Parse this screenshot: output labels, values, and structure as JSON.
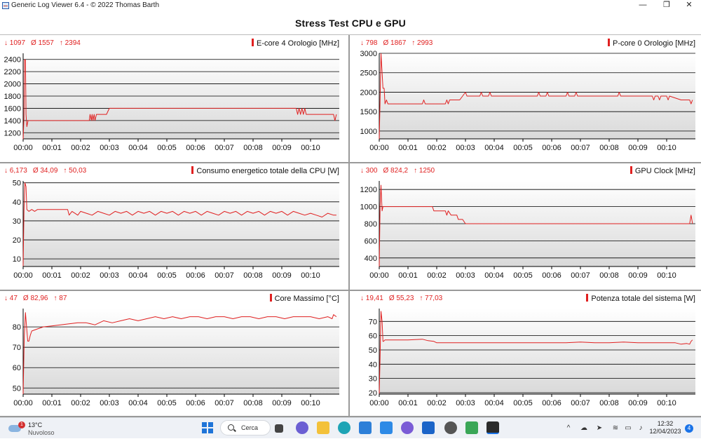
{
  "window": {
    "title": "Generic Log Viewer 6.4 - © 2022 Thomas Barth",
    "min": "—",
    "max": "❐",
    "close": "✕"
  },
  "header": {
    "title": "Stress Test CPU e GPU"
  },
  "colors": {
    "series": "#e02020",
    "grid": "#000000",
    "plot_bg_top": "#ffffff",
    "plot_bg_bottom": "#d9d9d9"
  },
  "x_ticks": [
    "00:00",
    "00:01",
    "00:02",
    "00:03",
    "00:04",
    "00:05",
    "00:06",
    "00:07",
    "00:08",
    "00:09",
    "00:10"
  ],
  "panels": [
    {
      "title": "E-core 4 Orologio [MHz]",
      "stats": {
        "min": "↓ 1097",
        "avg": "Ø 1557",
        "max": "↑ 2394"
      }
    },
    {
      "title": "P-core 0 Orologio [MHz]",
      "stats": {
        "min": "↓ 798",
        "avg": "Ø 1867",
        "max": "↑ 2993"
      }
    },
    {
      "title": "Consumo energetico totale della CPU [W]",
      "stats": {
        "min": "↓ 6,173",
        "avg": "Ø 34,09",
        "max": "↑ 50,03"
      }
    },
    {
      "title": "GPU Clock [MHz]",
      "stats": {
        "min": "↓ 300",
        "avg": "Ø 824,2",
        "max": "↑ 1250"
      }
    },
    {
      "title": "Core Massimo [°C]",
      "stats": {
        "min": "↓ 47",
        "avg": "Ø 82,96",
        "max": "↑ 87"
      }
    },
    {
      "title": "Potenza totale del sistema [W]",
      "stats": {
        "min": "↓ 19,41",
        "avg": "Ø 55,23",
        "max": "↑ 77,03"
      }
    }
  ],
  "chart_data": [
    {
      "type": "line",
      "ylim": [
        1100,
        2500
      ],
      "yticks": [
        1200,
        1400,
        1600,
        1800,
        2000,
        2200,
        2400
      ],
      "grid": true,
      "x_minutes": [
        0,
        0.03,
        0.05,
        0.08,
        0.1,
        0.13,
        0.17,
        0.2,
        0.3,
        0.5,
        1.0,
        1.5,
        2.2,
        2.3,
        2.33,
        2.37,
        2.4,
        2.43,
        2.47,
        2.5,
        2.55,
        2.6,
        2.65,
        2.9,
        3.0,
        5.0,
        7.0,
        9.0,
        9.5,
        9.55,
        9.6,
        9.65,
        9.7,
        9.75,
        9.8,
        9.85,
        9.9,
        10.5,
        10.8,
        10.85,
        10.9
      ],
      "values": [
        1097,
        1450,
        2394,
        2394,
        1500,
        1300,
        1400,
        1400,
        1400,
        1400,
        1400,
        1400,
        1400,
        1400,
        1500,
        1400,
        1500,
        1400,
        1500,
        1400,
        1500,
        1500,
        1500,
        1500,
        1600,
        1600,
        1600,
        1600,
        1600,
        1500,
        1600,
        1500,
        1600,
        1500,
        1600,
        1500,
        1500,
        1500,
        1500,
        1400,
        1500
      ]
    },
    {
      "type": "line",
      "ylim": [
        800,
        3000
      ],
      "yticks": [
        1000,
        1500,
        2000,
        2500,
        3000
      ],
      "grid": true,
      "x_minutes": [
        0,
        0.03,
        0.06,
        0.1,
        0.13,
        0.17,
        0.2,
        0.25,
        0.3,
        0.5,
        1.0,
        1.5,
        1.55,
        1.6,
        2.0,
        2.3,
        2.35,
        2.4,
        2.45,
        2.5,
        2.8,
        3.0,
        3.05,
        3.1,
        3.5,
        3.55,
        3.6,
        3.8,
        3.85,
        3.9,
        5.0,
        5.5,
        5.55,
        5.6,
        5.8,
        5.85,
        5.9,
        6.5,
        6.55,
        6.6,
        6.8,
        6.85,
        6.9,
        8.3,
        8.35,
        8.4,
        9.5,
        9.55,
        9.6,
        9.7,
        9.75,
        9.8,
        10.0,
        10.05,
        10.1,
        10.5,
        10.8,
        10.85,
        10.9
      ],
      "values": [
        798,
        1800,
        2993,
        2500,
        2100,
        2100,
        1700,
        1800,
        1700,
        1700,
        1700,
        1700,
        1800,
        1700,
        1700,
        1700,
        1800,
        1700,
        1800,
        1800,
        1800,
        2000,
        1900,
        1900,
        1900,
        2000,
        1900,
        1900,
        2000,
        1900,
        1900,
        1900,
        2000,
        1900,
        1900,
        2000,
        1900,
        1900,
        2000,
        1900,
        1900,
        2000,
        1900,
        1900,
        2000,
        1900,
        1900,
        1800,
        1900,
        1900,
        1800,
        1900,
        1900,
        1800,
        1900,
        1800,
        1800,
        1700,
        1800
      ]
    },
    {
      "type": "line",
      "ylim": [
        6,
        51
      ],
      "yticks": [
        10,
        20,
        30,
        40,
        50
      ],
      "grid": true,
      "x_minutes": [
        0,
        0.03,
        0.06,
        0.1,
        0.13,
        0.2,
        0.3,
        0.4,
        0.5,
        0.7,
        1.0,
        1.3,
        1.55,
        1.6,
        1.7,
        1.8,
        1.9,
        2.0,
        2.2,
        2.4,
        2.6,
        2.8,
        3.0,
        3.2,
        3.4,
        3.6,
        3.8,
        4.0,
        4.2,
        4.4,
        4.6,
        4.8,
        5.0,
        5.2,
        5.4,
        5.6,
        5.8,
        6.0,
        6.2,
        6.4,
        6.6,
        6.8,
        7.0,
        7.2,
        7.4,
        7.6,
        7.8,
        8.0,
        8.2,
        8.4,
        8.6,
        8.8,
        9.0,
        9.2,
        9.4,
        9.6,
        9.8,
        10.0,
        10.2,
        10.4,
        10.6,
        10.8,
        10.9
      ],
      "values": [
        6.173,
        35,
        50.03,
        48,
        36,
        35,
        36,
        35,
        36,
        36,
        36,
        36,
        36,
        33,
        35,
        34,
        33,
        35,
        34,
        33,
        35,
        34,
        33,
        35,
        34,
        35,
        33,
        35,
        34,
        35,
        33,
        35,
        34,
        35,
        33,
        35,
        34,
        35,
        33,
        35,
        34,
        33,
        35,
        34,
        35,
        33,
        35,
        34,
        35,
        33,
        35,
        34,
        35,
        33,
        35,
        34,
        33,
        34,
        33,
        32,
        34,
        33,
        33
      ]
    },
    {
      "type": "line",
      "ylim": [
        300,
        1300
      ],
      "yticks": [
        400,
        600,
        800,
        1000,
        1200
      ],
      "grid": true,
      "x_minutes": [
        0,
        0.03,
        0.06,
        0.1,
        0.13,
        0.15,
        0.2,
        0.5,
        1.0,
        1.5,
        1.85,
        1.9,
        2.2,
        2.3,
        2.35,
        2.4,
        2.5,
        2.55,
        2.7,
        2.75,
        2.8,
        2.9,
        3.0,
        4.0,
        5.0,
        6.0,
        7.0,
        8.0,
        9.0,
        10.0,
        10.8,
        10.85,
        10.9
      ],
      "values": [
        300,
        1000,
        1250,
        950,
        1000,
        1000,
        1000,
        1000,
        1000,
        1000,
        1000,
        950,
        950,
        950,
        900,
        950,
        900,
        900,
        900,
        850,
        850,
        850,
        800,
        800,
        800,
        800,
        800,
        800,
        800,
        800,
        800,
        900,
        800
      ]
    },
    {
      "type": "line",
      "ylim": [
        47,
        89
      ],
      "yticks": [
        50,
        60,
        70,
        80
      ],
      "grid": true,
      "x_minutes": [
        0,
        0.04,
        0.08,
        0.12,
        0.16,
        0.2,
        0.25,
        0.3,
        0.5,
        0.7,
        1.0,
        1.3,
        1.6,
        1.9,
        2.2,
        2.5,
        2.8,
        3.1,
        3.4,
        3.7,
        4.0,
        4.3,
        4.6,
        4.9,
        5.2,
        5.5,
        5.8,
        6.1,
        6.4,
        6.7,
        7.0,
        7.3,
        7.6,
        7.9,
        8.2,
        8.5,
        8.8,
        9.1,
        9.4,
        9.7,
        10.0,
        10.3,
        10.6,
        10.75,
        10.8,
        10.9
      ],
      "values": [
        47,
        75,
        87,
        80,
        73,
        73,
        76,
        78,
        79,
        80,
        80.5,
        81,
        81.5,
        82,
        82,
        81,
        83,
        82,
        83,
        84,
        83,
        84,
        85,
        84,
        85,
        84,
        85,
        85,
        84,
        85,
        85,
        84,
        85,
        85,
        84,
        85,
        85,
        84,
        85,
        85,
        85,
        84,
        85,
        84,
        86,
        85
      ]
    },
    {
      "type": "line",
      "ylim": [
        19,
        79
      ],
      "yticks": [
        20,
        30,
        40,
        50,
        60,
        70
      ],
      "grid": true,
      "x_minutes": [
        0,
        0.03,
        0.06,
        0.1,
        0.13,
        0.15,
        0.2,
        0.5,
        1.0,
        1.5,
        1.7,
        1.9,
        2.0,
        2.5,
        3.0,
        4.0,
        5.0,
        6.0,
        6.5,
        7.0,
        7.5,
        8.0,
        8.5,
        9.0,
        9.5,
        10.0,
        10.3,
        10.5,
        10.7,
        10.8,
        10.85,
        10.9
      ],
      "values": [
        19.41,
        45,
        77.03,
        70,
        56,
        56,
        57,
        57,
        57,
        57.5,
        56.5,
        56,
        55,
        55,
        55,
        55,
        55,
        55,
        55,
        55.5,
        55,
        55,
        55.5,
        55,
        55,
        55,
        55,
        54,
        54.5,
        54,
        56,
        57
      ]
    }
  ]
}
